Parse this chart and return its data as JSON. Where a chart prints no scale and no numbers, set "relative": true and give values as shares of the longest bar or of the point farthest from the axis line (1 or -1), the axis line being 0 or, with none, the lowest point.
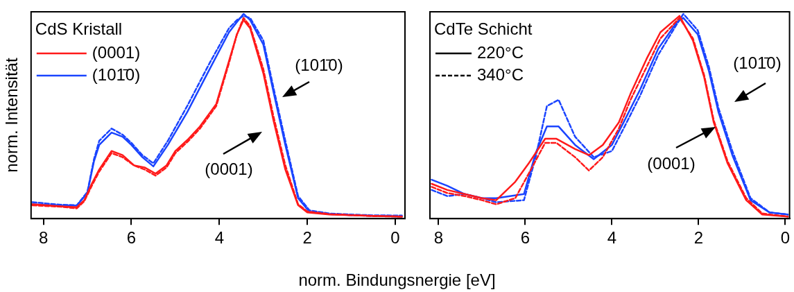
{
  "chart_data": [
    {
      "type": "line",
      "legend_title": "CdS Kristall",
      "xlabel": "norm. Bindungsnergie [eV]",
      "ylabel": "norm. Intensität",
      "relative": true,
      "xlim": [
        8.28,
        -0.22
      ],
      "xticks": [
        8,
        6,
        4,
        2,
        0
      ],
      "grid": false,
      "legend": "top left",
      "annotations": [
        "(101̄0)",
        "(0001)"
      ],
      "series": [
        {
          "name": "(0001)",
          "color": "#ff1a1a",
          "line_style": "solid",
          "x": [
            8.25,
            7.6,
            7.24,
            7.07,
            6.9,
            6.73,
            6.45,
            6.2,
            5.94,
            5.7,
            5.45,
            5.2,
            5.0,
            4.7,
            4.44,
            4.07,
            3.78,
            3.6,
            3.45,
            3.3,
            3.0,
            2.77,
            2.5,
            2.21,
            2.0,
            1.5,
            1.0,
            0.5,
            -0.15
          ],
          "values": [
            0.07,
            0.06,
            0.056,
            0.09,
            0.17,
            0.24,
            0.33,
            0.31,
            0.26,
            0.25,
            0.22,
            0.26,
            0.33,
            0.39,
            0.45,
            0.56,
            0.77,
            0.9,
            0.97,
            0.93,
            0.71,
            0.48,
            0.24,
            0.066,
            0.03,
            0.02,
            0.017,
            0.013,
            0.01
          ]
        },
        {
          "color": "#ff1a1a",
          "line_style": "dashed",
          "x": [
            8.25,
            7.6,
            7.24,
            7.07,
            6.9,
            6.73,
            6.45,
            6.2,
            5.94,
            5.7,
            5.45,
            5.2,
            5.0,
            4.7,
            4.44,
            4.07,
            3.78,
            3.6,
            3.45,
            3.3,
            3.0,
            2.77,
            2.5,
            2.21,
            2.0,
            1.5,
            1.0,
            0.5,
            -0.15
          ],
          "values": [
            0.065,
            0.058,
            0.05,
            0.085,
            0.16,
            0.23,
            0.32,
            0.3,
            0.26,
            0.24,
            0.21,
            0.25,
            0.32,
            0.38,
            0.44,
            0.55,
            0.76,
            0.9,
            0.98,
            0.94,
            0.73,
            0.5,
            0.26,
            0.07,
            0.035,
            0.022,
            0.017,
            0.012,
            0.01
          ]
        },
        {
          "name": "(101̄0)",
          "color": "#1a44ff",
          "line_style": "solid",
          "x": [
            8.25,
            7.6,
            7.24,
            7.0,
            6.85,
            6.73,
            6.45,
            6.2,
            6.0,
            5.75,
            5.5,
            5.17,
            4.73,
            4.22,
            3.78,
            3.6,
            3.45,
            3.3,
            3.0,
            2.77,
            2.5,
            2.21,
            1.95,
            1.5,
            1.0,
            0.5,
            -0.15
          ],
          "values": [
            0.07,
            0.063,
            0.063,
            0.126,
            0.28,
            0.36,
            0.42,
            0.4,
            0.36,
            0.3,
            0.255,
            0.36,
            0.52,
            0.73,
            0.91,
            0.96,
            1.0,
            0.97,
            0.85,
            0.62,
            0.36,
            0.1,
            0.033,
            0.022,
            0.017,
            0.013,
            0.01
          ]
        },
        {
          "color": "#1a44ff",
          "line_style": "dashed",
          "x": [
            8.25,
            7.6,
            7.24,
            7.0,
            6.85,
            6.73,
            6.45,
            6.2,
            6.0,
            5.75,
            5.5,
            5.17,
            4.73,
            4.22,
            3.78,
            3.6,
            3.45,
            3.3,
            3.0,
            2.77,
            2.5,
            2.21,
            1.95,
            1.5,
            1.0,
            0.5,
            -0.15
          ],
          "values": [
            0.08,
            0.068,
            0.065,
            0.13,
            0.29,
            0.38,
            0.44,
            0.41,
            0.37,
            0.31,
            0.27,
            0.38,
            0.55,
            0.76,
            0.93,
            0.97,
            0.99,
            0.98,
            0.87,
            0.64,
            0.38,
            0.11,
            0.04,
            0.025,
            0.02,
            0.016,
            0.015
          ]
        }
      ]
    },
    {
      "type": "line",
      "legend_title": "CdTe Schicht",
      "relative": true,
      "xlim": [
        8.2,
        -0.1
      ],
      "xticks": [
        8,
        6,
        4,
        2,
        0
      ],
      "grid": false,
      "legend": "top left",
      "annotations": [
        "220°C",
        "340°C",
        "(101̄0)",
        "(0001)"
      ],
      "series": [
        {
          "color": "#ff1a1a",
          "line_style": "solid",
          "x": [
            8.16,
            7.8,
            7.4,
            7.0,
            6.67,
            6.23,
            5.92,
            5.54,
            5.28,
            4.85,
            4.53,
            4.21,
            3.84,
            3.57,
            3.2,
            2.88,
            2.44,
            2.13,
            1.87,
            1.65,
            1.33,
            0.9,
            0.53,
            -0.06
          ],
          "values": [
            0.17,
            0.14,
            0.12,
            0.1,
            0.09,
            0.18,
            0.27,
            0.39,
            0.39,
            0.34,
            0.31,
            0.36,
            0.47,
            0.61,
            0.78,
            0.91,
            0.99,
            0.87,
            0.69,
            0.47,
            0.27,
            0.09,
            0.02,
            0.01
          ]
        },
        {
          "color": "#ff1a1a",
          "line_style": "dashed",
          "x": [
            8.16,
            7.8,
            7.4,
            7.0,
            6.67,
            6.23,
            5.92,
            5.54,
            5.28,
            4.85,
            4.53,
            4.21,
            3.84,
            3.57,
            3.2,
            2.88,
            2.44,
            2.13,
            1.87,
            1.65,
            1.33,
            0.9,
            0.53,
            -0.06
          ],
          "values": [
            0.155,
            0.125,
            0.11,
            0.09,
            0.07,
            0.1,
            0.22,
            0.37,
            0.37,
            0.3,
            0.235,
            0.3,
            0.44,
            0.58,
            0.74,
            0.88,
            0.98,
            0.88,
            0.7,
            0.48,
            0.28,
            0.1,
            0.025,
            0.01
          ]
        },
        {
          "color": "#1a44ff",
          "line_style": "solid",
          "x": [
            8.16,
            7.8,
            7.4,
            7.0,
            6.67,
            6.03,
            5.76,
            5.5,
            5.23,
            4.85,
            4.42,
            4.0,
            3.73,
            3.35,
            2.93,
            2.5,
            2.35,
            2.02,
            1.76,
            1.54,
            1.22,
            0.8,
            0.36,
            -0.06
          ],
          "values": [
            0.19,
            0.16,
            0.12,
            0.1,
            0.1,
            0.12,
            0.32,
            0.45,
            0.45,
            0.36,
            0.29,
            0.36,
            0.47,
            0.63,
            0.83,
            0.96,
            0.98,
            0.9,
            0.72,
            0.52,
            0.31,
            0.09,
            0.03,
            0.02
          ]
        },
        {
          "color": "#1a44ff",
          "line_style": "dashed",
          "x": [
            8.16,
            7.8,
            7.4,
            7.0,
            6.67,
            6.03,
            5.76,
            5.5,
            5.23,
            4.85,
            4.42,
            4.0,
            3.73,
            3.35,
            2.93,
            2.5,
            2.35,
            2.02,
            1.76,
            1.54,
            1.22,
            0.8,
            0.36,
            -0.06
          ],
          "values": [
            0.14,
            0.11,
            0.12,
            0.1,
            0.08,
            0.09,
            0.3,
            0.55,
            0.58,
            0.4,
            0.3,
            0.33,
            0.44,
            0.6,
            0.8,
            0.95,
            1.0,
            0.92,
            0.74,
            0.54,
            0.33,
            0.1,
            0.03,
            0.02
          ]
        }
      ]
    }
  ]
}
